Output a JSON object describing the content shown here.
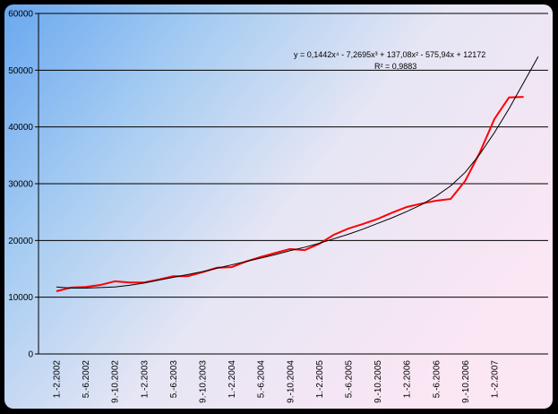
{
  "chart_data": {
    "type": "line",
    "categories": [
      "1.-2.2002",
      null,
      "5.-6.2002",
      null,
      "9.-10.2002",
      null,
      "1.-2.2003",
      null,
      "5.-6.2003",
      null,
      "9.-10.2003",
      null,
      "1.-2.2004",
      null,
      "5.-6.2004",
      null,
      "9.-10.2004",
      null,
      "1.-2.2005",
      null,
      "5.-6.2005",
      null,
      "9.-10.2005",
      null,
      "1.-2.2006",
      null,
      "5.-6.2006",
      null,
      "9.-10.2006",
      null,
      "1.-2.2007",
      null,
      null,
      null
    ],
    "series": [
      {
        "color": "#ff0000",
        "values": [
          11050,
          11700,
          11800,
          12150,
          12800,
          12600,
          12600,
          13100,
          13700,
          13700,
          14400,
          15200,
          15300,
          16300,
          17100,
          17800,
          18500,
          18300,
          19400,
          21000,
          22100,
          22900,
          23800,
          24900,
          25900,
          26500,
          27000,
          27300,
          30500,
          35500,
          41400,
          45200,
          45300,
          null
        ]
      },
      {
        "color": "#000000",
        "values": [
          11800,
          11600,
          11600,
          11700,
          11800,
          12100,
          12500,
          13000,
          13500,
          14000,
          14500,
          15100,
          15700,
          16300,
          16900,
          17500,
          18200,
          18800,
          19500,
          20300,
          21100,
          22000,
          23000,
          24000,
          25100,
          26300,
          27800,
          29600,
          32000,
          35200,
          39000,
          43200,
          47800,
          52400
        ]
      }
    ],
    "annotations": [
      "y = 0,1442x⁴ - 7,2695x³ + 137,08x² - 575,94x + 12172",
      "R² = 0,9883"
    ],
    "ylim": [
      0,
      60000
    ],
    "yticks": [
      0,
      10000,
      20000,
      30000,
      40000,
      50000,
      60000
    ],
    "grid": true
  }
}
